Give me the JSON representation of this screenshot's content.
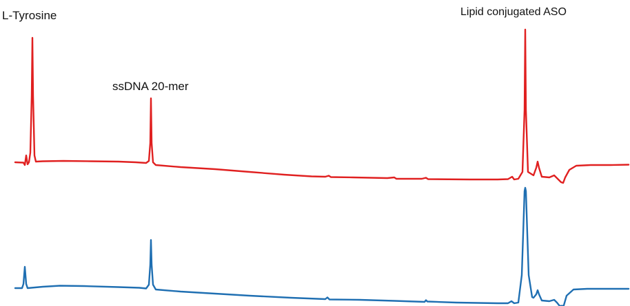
{
  "chart_data": {
    "type": "line",
    "title": "",
    "xlabel": "",
    "ylabel": "",
    "grid": false,
    "axes_visible": false,
    "annotations": [
      {
        "text": "L-Tyrosine"
      },
      {
        "text": "ssDNA 20-mer"
      },
      {
        "text": "Lipid conjugated ASO"
      }
    ],
    "series": [
      {
        "color": "#e02020",
        "points": [
          [
            0,
            236
          ],
          [
            12,
            236.5
          ],
          [
            14,
            240
          ],
          [
            16,
            226
          ],
          [
            18,
            239
          ],
          [
            20,
            236
          ],
          [
            22,
            222
          ],
          [
            24,
            140
          ],
          [
            25,
            55
          ],
          [
            26,
            140
          ],
          [
            28,
            226
          ],
          [
            30,
            235
          ],
          [
            40,
            234.5
          ],
          [
            70,
            234
          ],
          [
            110,
            234.5
          ],
          [
            150,
            235
          ],
          [
            175,
            236
          ],
          [
            190,
            237
          ],
          [
            194,
            234
          ],
          [
            196,
            208
          ],
          [
            197,
            143
          ],
          [
            198,
            208
          ],
          [
            200,
            236
          ],
          [
            204,
            240
          ],
          [
            240,
            243
          ],
          [
            290,
            246
          ],
          [
            340,
            250
          ],
          [
            390,
            254
          ],
          [
            430,
            256.5
          ],
          [
            450,
            257
          ],
          [
            455,
            255.5
          ],
          [
            458,
            257.5
          ],
          [
            490,
            258
          ],
          [
            540,
            259
          ],
          [
            550,
            258
          ],
          [
            553,
            260
          ],
          [
            590,
            260
          ],
          [
            596,
            258.5
          ],
          [
            599,
            260.5
          ],
          [
            660,
            261
          ],
          [
            700,
            261
          ],
          [
            715,
            260.5
          ],
          [
            721,
            257
          ],
          [
            724,
            261
          ],
          [
            730,
            260
          ],
          [
            736,
            250
          ],
          [
            739,
            160
          ],
          [
            740,
            43
          ],
          [
            741,
            160
          ],
          [
            744,
            250
          ],
          [
            752,
            255
          ],
          [
            756,
            244
          ],
          [
            758,
            235
          ],
          [
            760,
            244
          ],
          [
            764,
            257
          ],
          [
            775,
            258
          ],
          [
            782,
            255
          ],
          [
            786,
            259
          ],
          [
            792,
            265
          ],
          [
            795,
            266
          ],
          [
            798,
            258
          ],
          [
            804,
            247
          ],
          [
            814,
            241
          ],
          [
            835,
            240
          ],
          [
            864,
            240
          ],
          [
            890,
            239.5
          ]
        ]
      },
      {
        "color": "#1f6fb2",
        "points": [
          [
            0,
            419
          ],
          [
            10,
            419
          ],
          [
            12,
            413
          ],
          [
            14,
            388
          ],
          [
            16,
            413
          ],
          [
            18,
            419
          ],
          [
            40,
            417
          ],
          [
            65,
            415.5
          ],
          [
            100,
            416
          ],
          [
            150,
            417.5
          ],
          [
            180,
            418.5
          ],
          [
            190,
            419.5
          ],
          [
            194,
            414
          ],
          [
            196,
            385
          ],
          [
            197,
            349
          ],
          [
            198,
            385
          ],
          [
            200,
            414
          ],
          [
            204,
            421
          ],
          [
            240,
            424
          ],
          [
            290,
            427
          ],
          [
            340,
            430
          ],
          [
            400,
            433
          ],
          [
            450,
            435
          ],
          [
            453,
            432.5
          ],
          [
            456,
            435.5
          ],
          [
            500,
            436
          ],
          [
            550,
            437.5
          ],
          [
            594,
            439
          ],
          [
            596,
            436.5
          ],
          [
            598,
            438.5
          ],
          [
            640,
            440
          ],
          [
            700,
            441
          ],
          [
            715,
            441
          ],
          [
            720,
            438
          ],
          [
            724,
            441
          ],
          [
            730,
            440
          ],
          [
            735,
            400
          ],
          [
            737,
            340
          ],
          [
            739,
            278
          ],
          [
            740,
            273
          ],
          [
            741,
            278
          ],
          [
            743,
            340
          ],
          [
            745,
            400
          ],
          [
            750,
            432
          ],
          [
            752,
            433
          ],
          [
            756,
            428
          ],
          [
            758,
            422
          ],
          [
            760,
            428
          ],
          [
            764,
            437
          ],
          [
            775,
            438
          ],
          [
            782,
            436
          ],
          [
            786,
            440
          ],
          [
            790,
            445
          ],
          [
            796,
            444
          ],
          [
            800,
            430
          ],
          [
            810,
            421
          ],
          [
            830,
            420
          ],
          [
            890,
            420
          ]
        ]
      }
    ]
  }
}
